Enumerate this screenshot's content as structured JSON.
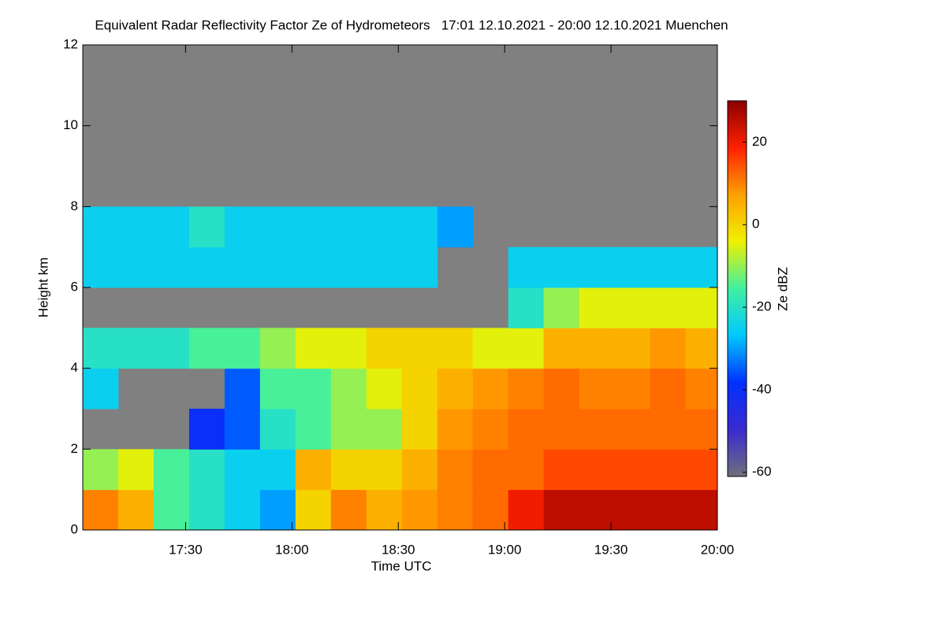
{
  "chart_data": {
    "type": "heatmap",
    "title": "Equivalent Radar Reflectivity Factor Ze of Hydrometeors   17:01 12.10.2021 - 20:00 12.10.2021 Muenchen",
    "xlabel": "Time UTC",
    "ylabel": "Height km",
    "colorbar_label": "Ze dBZ",
    "xlim": [
      17.0167,
      20.0
    ],
    "xticks": [
      {
        "value": 17.5,
        "label": "17:30"
      },
      {
        "value": 18.0,
        "label": "18:00"
      },
      {
        "value": 18.5,
        "label": "18:30"
      },
      {
        "value": 19.0,
        "label": "19:00"
      },
      {
        "value": 19.5,
        "label": "19:30"
      },
      {
        "value": 20.0,
        "label": "20:00"
      }
    ],
    "ylim": [
      0,
      12
    ],
    "yticks": [
      0,
      2,
      4,
      6,
      8,
      10,
      12
    ],
    "colorbar_lim": [
      -61,
      30
    ],
    "colorbar_ticks": [
      20,
      0,
      -20,
      -40,
      -60
    ],
    "colormap": [
      "#6f6f7a",
      "#3a2ad0",
      "#0030ff",
      "#00c8ff",
      "#40f0a0",
      "#f0f000",
      "#ffa000",
      "#ff2000",
      "#8b0000"
    ],
    "no_data_color": "#808080",
    "x_bins": [
      17.0167,
      17.1833,
      17.35,
      17.5167,
      17.6833,
      17.85,
      18.0167,
      18.1833,
      18.35,
      18.5167,
      18.6833,
      18.85,
      19.0167,
      19.1833,
      19.35,
      19.5167,
      19.6833,
      19.85,
      20.0
    ],
    "y_bins": [
      0,
      1,
      2,
      3,
      4,
      5,
      6,
      7,
      8
    ],
    "z": [
      [
        10,
        5,
        -15,
        -20,
        -25,
        -30,
        0,
        10,
        5,
        8,
        10,
        12,
        20,
        25,
        25,
        25,
        25,
        25
      ],
      [
        -10,
        -5,
        -15,
        -20,
        -25,
        -25,
        5,
        0,
        0,
        5,
        10,
        12,
        12,
        15,
        15,
        15,
        15,
        15
      ],
      [
        null,
        null,
        null,
        -40,
        -35,
        -20,
        -15,
        -10,
        -10,
        0,
        8,
        10,
        12,
        12,
        12,
        12,
        12,
        12
      ],
      [
        -25,
        null,
        null,
        null,
        -35,
        -15,
        -15,
        -10,
        -5,
        0,
        5,
        8,
        10,
        12,
        10,
        10,
        12,
        10
      ],
      [
        -20,
        -20,
        -20,
        -15,
        -15,
        -10,
        -5,
        -5,
        0,
        0,
        0,
        -5,
        -5,
        5,
        5,
        5,
        8,
        5
      ],
      [
        null,
        null,
        null,
        null,
        null,
        null,
        null,
        null,
        null,
        null,
        null,
        null,
        -20,
        -10,
        -5,
        -5,
        -5,
        -5
      ],
      [
        -25,
        -25,
        -25,
        -25,
        -25,
        -25,
        -25,
        -25,
        -25,
        -25,
        null,
        null,
        -25,
        -25,
        -25,
        -25,
        -25,
        -25
      ],
      [
        -25,
        -25,
        -25,
        -20,
        -25,
        -25,
        -25,
        -25,
        -25,
        -25,
        -30,
        null,
        null,
        null,
        null,
        null,
        null,
        null
      ]
    ]
  }
}
